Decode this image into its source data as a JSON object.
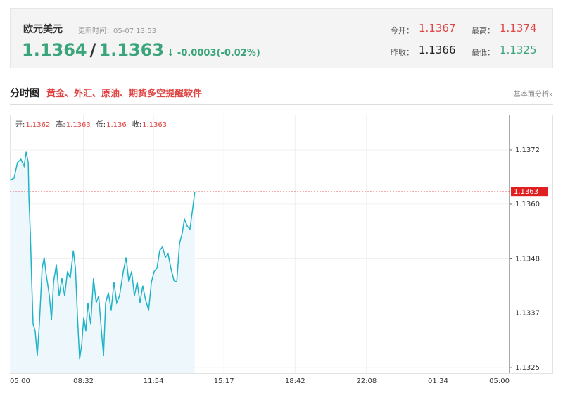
{
  "header": {
    "title": "欧元美元",
    "update_label": "更新时间：05-07 13:53",
    "bid": "1.1364",
    "separator": "/",
    "ask": "1.1363",
    "arrow": "↓",
    "change": "-0.0003(-0.02%)",
    "open_label": "今开：",
    "open": "1.1367",
    "high_label": "最高：",
    "high": "1.1374",
    "prev_label": "昨收：",
    "prev": "1.1366",
    "low_label": "最低：",
    "low": "1.1325"
  },
  "section": {
    "title": "分时图",
    "promo": "黄金、外汇、原油、期货多空提醒软件",
    "link": "基本面分析»"
  },
  "chart_data": {
    "type": "line",
    "ohlc": [
      {
        "label": "开:",
        "value": 1.1362
      },
      {
        "label": "高:",
        "value": 1.1363
      },
      {
        "label": "低:",
        "value": 1.136
      },
      {
        "label": "收:",
        "value": 1.1363
      }
    ],
    "x": [
      0,
      12,
      22,
      32,
      41,
      47,
      53,
      55,
      59,
      63,
      67,
      73,
      79,
      85,
      93,
      99,
      105,
      114,
      120,
      126,
      134,
      142,
      150,
      158,
      166,
      174,
      183,
      189,
      195,
      201,
      207,
      213,
      219,
      225,
      233,
      241,
      249,
      256,
      264,
      270,
      276,
      284,
      292,
      300,
      308,
      316,
      327,
      335,
      343,
      351,
      359,
      367,
      375,
      383,
      391,
      400,
      408,
      416,
      424,
      432,
      440,
      448,
      456,
      464,
      473,
      481,
      489,
      497,
      503,
      511,
      519,
      527,
      533
    ],
    "series": [
      {
        "color": "#1fb3c8",
        "values": [
          1.13655,
          1.13659,
          1.13693,
          1.137,
          1.13685,
          1.13716,
          1.13693,
          1.13617,
          1.13541,
          1.13435,
          1.13344,
          1.13329,
          1.13276,
          1.13344,
          1.13465,
          1.13488,
          1.1345,
          1.13405,
          1.13352,
          1.13435,
          1.13473,
          1.13405,
          1.13443,
          1.13405,
          1.13458,
          1.13443,
          1.13503,
          1.13465,
          1.13359,
          1.13268,
          1.13299,
          1.13359,
          1.13329,
          1.1339,
          1.13344,
          1.13443,
          1.1339,
          1.13405,
          1.13329,
          1.13276,
          1.1339,
          1.13412,
          1.13374,
          1.13435,
          1.1339,
          1.13405,
          1.13458,
          1.13488,
          1.13435,
          1.13458,
          1.13405,
          1.13435,
          1.1339,
          1.13427,
          1.13397,
          1.13374,
          1.13435,
          1.13458,
          1.13465,
          1.13503,
          1.13511,
          1.13488,
          1.13496,
          1.13465,
          1.13438,
          1.13435,
          1.13518,
          1.13541,
          1.13571,
          1.13556,
          1.13549,
          1.13594,
          1.1363
        ]
      }
    ],
    "current_value": 1.1363,
    "xlim": [
      0,
      1440
    ],
    "xticks": [
      {
        "value": 0,
        "label": "05:00"
      },
      {
        "value": 212,
        "label": "08:32"
      },
      {
        "value": 414,
        "label": "11:54"
      },
      {
        "value": 617,
        "label": "15:17"
      },
      {
        "value": 822,
        "label": "18:42"
      },
      {
        "value": 1028,
        "label": "22:08"
      },
      {
        "value": 1234,
        "label": "01:34"
      },
      {
        "value": 1440,
        "label": "05:00"
      }
    ],
    "ylim": [
      1.13238,
      1.13796
    ],
    "yticks": [
      {
        "value": 1.1325,
        "label": "1.1325"
      },
      {
        "value": 1.13368,
        "label": "1.1337"
      },
      {
        "value": 1.13485,
        "label": "1.1348"
      },
      {
        "value": 1.13603,
        "label": "1.1360"
      },
      {
        "value": 1.1372,
        "label": "1.1372"
      }
    ],
    "grid": true
  }
}
